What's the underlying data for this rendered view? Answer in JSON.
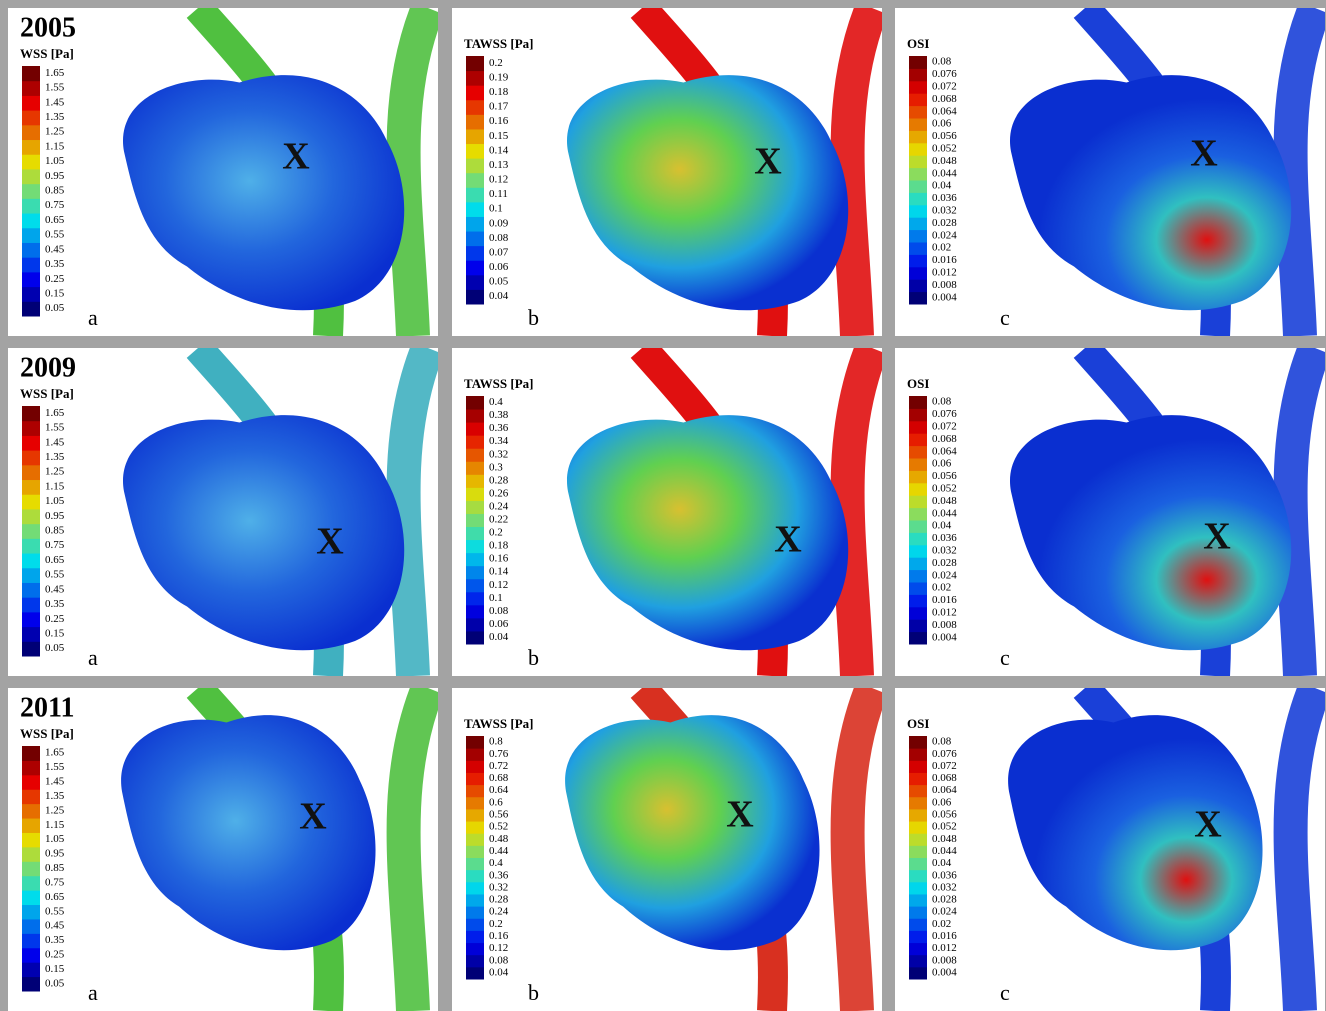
{
  "rows": [
    {
      "year": "2005",
      "panels": [
        {
          "legend_title": "WSS [Pa]",
          "ticks": [
            0.05,
            0.15,
            0.25,
            0.35,
            0.45,
            0.55,
            0.65,
            0.75,
            0.85,
            0.95,
            1.05,
            1.15,
            1.25,
            1.35,
            1.45,
            1.55,
            1.65
          ],
          "letter": "a",
          "marker": "X"
        },
        {
          "legend_title": "TAWSS [Pa]",
          "ticks": [
            0.04,
            0.05,
            0.06,
            0.07,
            0.08,
            0.09,
            0.1,
            0.11,
            0.12,
            0.13,
            0.14,
            0.15,
            0.16,
            0.17,
            0.18,
            0.19,
            0.2
          ],
          "letter": "b",
          "marker": "X"
        },
        {
          "legend_title": "OSI",
          "ticks": [
            0.004,
            0.008,
            0.012,
            0.016,
            0.02,
            0.024,
            0.028,
            0.032,
            0.036,
            0.04,
            0.044,
            0.048,
            0.052,
            0.056,
            0.06,
            0.064,
            0.068,
            0.072,
            0.076,
            0.08
          ],
          "letter": "c",
          "marker": "X"
        }
      ]
    },
    {
      "year": "2009",
      "panels": [
        {
          "legend_title": "WSS [Pa]",
          "ticks": [
            0.05,
            0.15,
            0.25,
            0.35,
            0.45,
            0.55,
            0.65,
            0.75,
            0.85,
            0.95,
            1.05,
            1.15,
            1.25,
            1.35,
            1.45,
            1.55,
            1.65
          ],
          "letter": "a",
          "marker": "X"
        },
        {
          "legend_title": "TAWSS [Pa]",
          "ticks": [
            0.04,
            0.06,
            0.08,
            0.1,
            0.12,
            0.14,
            0.16,
            0.18,
            0.2,
            0.22,
            0.24,
            0.26,
            0.28,
            0.3,
            0.32,
            0.34,
            0.36,
            0.38,
            0.4
          ],
          "letter": "b",
          "marker": "X"
        },
        {
          "legend_title": "OSI",
          "ticks": [
            0.004,
            0.008,
            0.012,
            0.016,
            0.02,
            0.024,
            0.028,
            0.032,
            0.036,
            0.04,
            0.044,
            0.048,
            0.052,
            0.056,
            0.06,
            0.064,
            0.068,
            0.072,
            0.076,
            0.08
          ],
          "letter": "c",
          "marker": "X"
        }
      ]
    },
    {
      "year": "2011",
      "panels": [
        {
          "legend_title": "WSS [Pa]",
          "ticks": [
            0.05,
            0.15,
            0.25,
            0.35,
            0.45,
            0.55,
            0.65,
            0.75,
            0.85,
            0.95,
            1.05,
            1.15,
            1.25,
            1.35,
            1.45,
            1.55,
            1.65
          ],
          "letter": "a",
          "marker": "X"
        },
        {
          "legend_title": "TAWSS [Pa]",
          "ticks": [
            0.04,
            0.08,
            0.12,
            0.16,
            0.2,
            0.24,
            0.28,
            0.32,
            0.36,
            0.4,
            0.44,
            0.48,
            0.52,
            0.56,
            0.6,
            0.64,
            0.68,
            0.72,
            0.76,
            0.8
          ],
          "letter": "b",
          "marker": "X"
        },
        {
          "legend_title": "OSI",
          "ticks": [
            0.004,
            0.008,
            0.012,
            0.016,
            0.02,
            0.024,
            0.028,
            0.032,
            0.036,
            0.04,
            0.044,
            0.048,
            0.052,
            0.056,
            0.06,
            0.064,
            0.068,
            0.072,
            0.076,
            0.08
          ],
          "letter": "c",
          "marker": "X"
        }
      ]
    }
  ]
}
